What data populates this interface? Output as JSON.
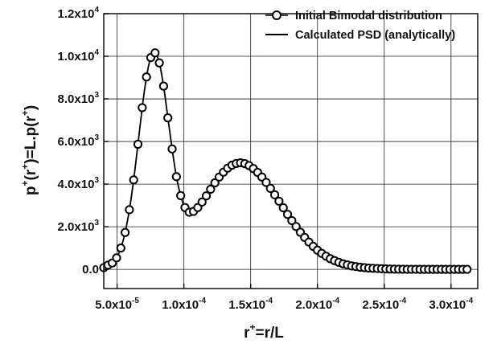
{
  "chart_data": {
    "type": "line",
    "xlabel": {
      "base": "r",
      "sup": "+",
      "rest": "=r/L"
    },
    "ylabel": {
      "parts": [
        "p",
        "+",
        "(r",
        "+",
        ")=L.p(r",
        "+",
        ")"
      ]
    },
    "xlim": [
      4e-05,
      0.00032
    ],
    "ylim": [
      -900,
      12000
    ],
    "grid": true,
    "x_ticks": [
      {
        "value": 5e-05,
        "mantissa": "5.0x10",
        "exp": "-5"
      },
      {
        "value": 0.0001,
        "mantissa": "1.0x10",
        "exp": "-4"
      },
      {
        "value": 0.00015,
        "mantissa": "1.5x10",
        "exp": "-4"
      },
      {
        "value": 0.0002,
        "mantissa": "2.0x10",
        "exp": "-4"
      },
      {
        "value": 0.00025,
        "mantissa": "2.5x10",
        "exp": "-4"
      },
      {
        "value": 0.0003,
        "mantissa": "3.0x10",
        "exp": "-4"
      }
    ],
    "y_ticks": [
      {
        "value": 0,
        "mantissa": "0.0",
        "exp": ""
      },
      {
        "value": 2000,
        "mantissa": "2.0x10",
        "exp": "3"
      },
      {
        "value": 4000,
        "mantissa": "4.0x10",
        "exp": "3"
      },
      {
        "value": 6000,
        "mantissa": "6.0x10",
        "exp": "3"
      },
      {
        "value": 8000,
        "mantissa": "8.0x10",
        "exp": "3"
      },
      {
        "value": 10000,
        "mantissa": "1.0x10",
        "exp": "4"
      },
      {
        "value": 12000,
        "mantissa": "1.2x10",
        "exp": "4"
      }
    ],
    "legend_position": "top-right",
    "series": [
      {
        "name": "Initial Bimodal distribution",
        "style": "open-circle-markers",
        "x": [
          4e-05,
          4.32e-05,
          4.64e-05,
          4.96e-05,
          5.28e-05,
          5.6e-05,
          5.92e-05,
          6.24e-05,
          6.56e-05,
          6.88e-05,
          7.2e-05,
          7.52e-05,
          7.84e-05,
          8.16e-05,
          8.48e-05,
          8.8e-05,
          9.12e-05,
          9.44e-05,
          9.76e-05,
          0.0001008,
          0.000104,
          0.0001072,
          0.0001104,
          0.0001136,
          0.0001168,
          0.00012,
          0.0001232,
          0.0001264,
          0.0001296,
          0.0001328,
          0.000136,
          0.0001392,
          0.0001424,
          0.0001456,
          0.0001488,
          0.000152,
          0.0001552,
          0.0001584,
          0.0001616,
          0.0001648,
          0.000168,
          0.0001712,
          0.0001744,
          0.0001776,
          0.0001808,
          0.000184,
          0.0001872,
          0.0001904,
          0.0001936,
          0.0001968,
          0.0002,
          0.0002032,
          0.0002064,
          0.0002096,
          0.0002128,
          0.000216,
          0.0002192,
          0.0002224,
          0.0002256,
          0.0002288,
          0.000232,
          0.0002352,
          0.0002384,
          0.0002416,
          0.0002448,
          0.000248,
          0.0002512,
          0.0002544,
          0.0002576,
          0.0002608,
          0.000264,
          0.0002672,
          0.0002704,
          0.0002736,
          0.0002768,
          0.00028,
          0.0002832,
          0.0002864,
          0.0002896,
          0.0002928,
          0.000296,
          0.0002992,
          0.0003024,
          0.0003056,
          0.0003088,
          0.000312
        ],
        "y": [
          80,
          200,
          300,
          540,
          1000,
          1730,
          2800,
          4200,
          5870,
          7590,
          9030,
          9940,
          10160,
          9690,
          8600,
          7110,
          5650,
          4350,
          3460,
          2900,
          2680,
          2720,
          2900,
          3160,
          3450,
          3760,
          4060,
          4330,
          4560,
          4750,
          4890,
          4970,
          5000,
          4960,
          4870,
          4730,
          4550,
          4330,
          4080,
          3800,
          3500,
          3200,
          2890,
          2580,
          2290,
          2010,
          1740,
          1500,
          1280,
          1080,
          900,
          750,
          620,
          500,
          410,
          330,
          260,
          210,
          160,
          130,
          100,
          80,
          60,
          50,
          40,
          30,
          20,
          15,
          10,
          8,
          5,
          3,
          2,
          2,
          1,
          1,
          0,
          0,
          0,
          0,
          0,
          0,
          0,
          0,
          0,
          0
        ]
      },
      {
        "name": "Calculated PSD (analytically)",
        "style": "solid-line"
      }
    ]
  }
}
